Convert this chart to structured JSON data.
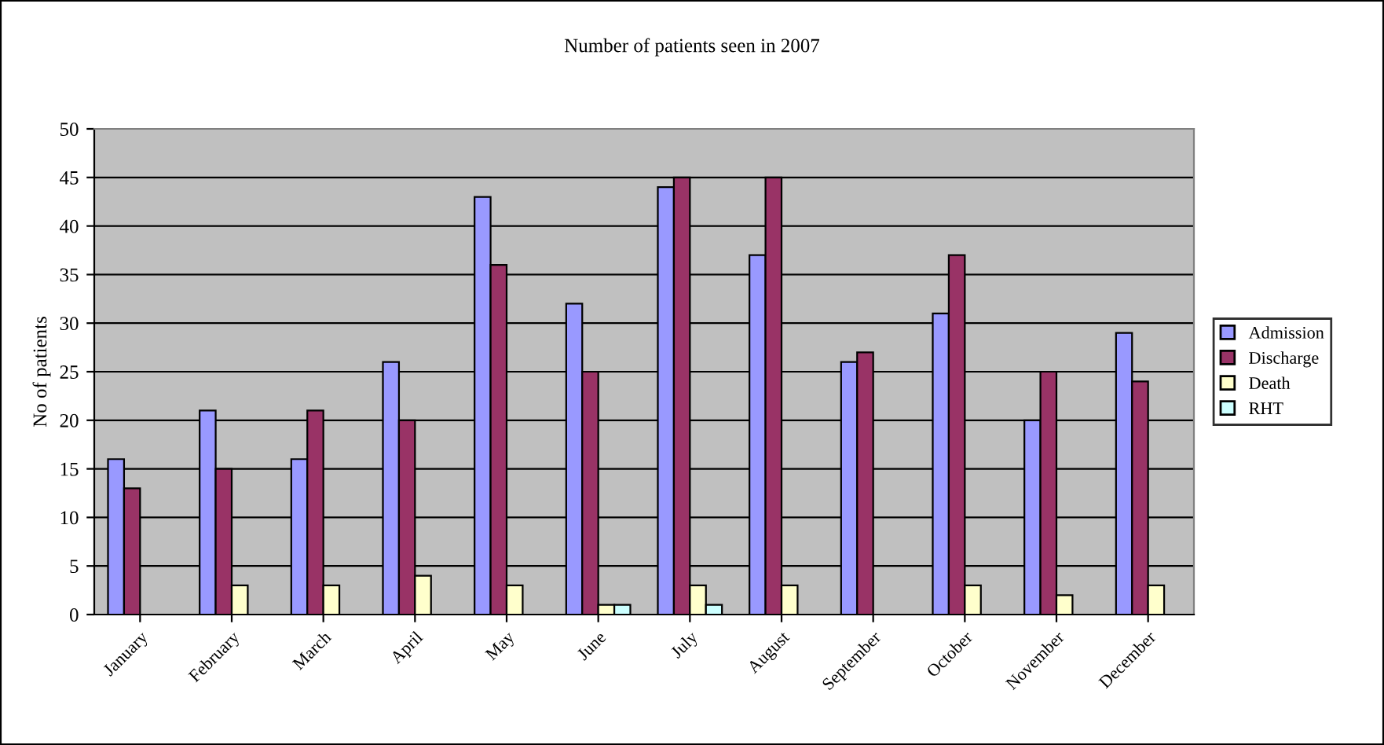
{
  "chart_data": {
    "type": "bar",
    "title": "Number of patients seen in 2007",
    "ylabel": "No of patients",
    "categories": [
      "January",
      "February",
      "March",
      "April",
      "May",
      "June",
      "July",
      "August",
      "September",
      "October",
      "November",
      "December"
    ],
    "series": [
      {
        "name": "Admission",
        "color": "#9999ff",
        "values": [
          16,
          21,
          16,
          26,
          43,
          32,
          44,
          37,
          26,
          31,
          20,
          29
        ]
      },
      {
        "name": "Discharge",
        "color": "#993366",
        "values": [
          13,
          15,
          21,
          20,
          36,
          25,
          45,
          45,
          27,
          37,
          25,
          24
        ]
      },
      {
        "name": "Death",
        "color": "#ffffcc",
        "values": [
          null,
          3,
          3,
          4,
          3,
          1,
          3,
          3,
          null,
          3,
          2,
          3
        ]
      },
      {
        "name": "RHT",
        "color": "#ccffff",
        "values": [
          null,
          null,
          null,
          null,
          null,
          1,
          1,
          null,
          null,
          null,
          null,
          null
        ]
      }
    ],
    "ylim": [
      0,
      50
    ],
    "yticks": [
      0,
      5,
      10,
      15,
      20,
      25,
      30,
      35,
      40,
      45,
      50
    ],
    "grid": "y",
    "legend": "right"
  }
}
